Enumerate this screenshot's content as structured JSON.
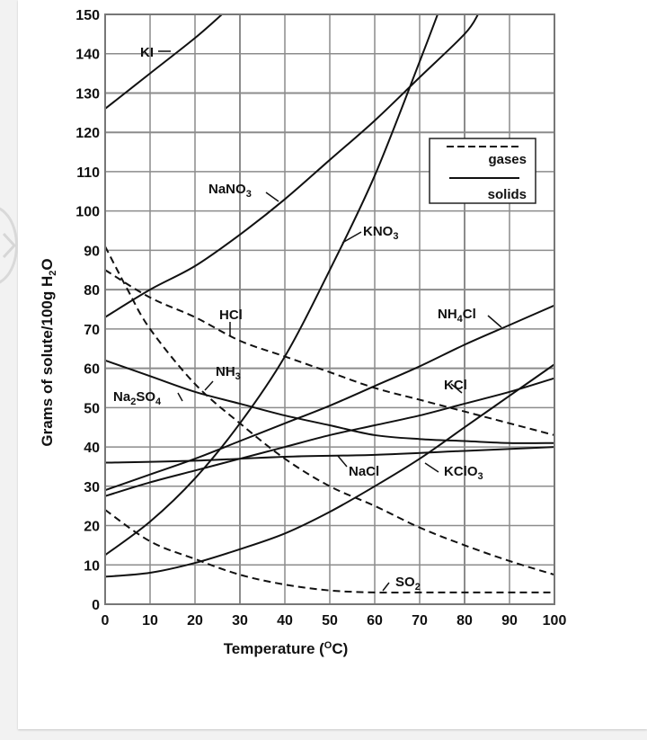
{
  "page": {
    "nav_icon": "chevron-left-icon"
  },
  "chart_data": {
    "type": "line",
    "title": "",
    "xlabel": "Temperature (°C)",
    "xlabel_parts": {
      "main": "Temperature (",
      "sup": "O",
      "unit": "C)"
    },
    "ylabel": "Grams of solute/100g H2O",
    "ylabel_parts": {
      "main": "Grams of solute/100g H",
      "sub": "2",
      "end": "O"
    },
    "xlim": [
      0,
      100
    ],
    "ylim": [
      0,
      150
    ],
    "x_ticks": [
      0,
      10,
      20,
      30,
      40,
      50,
      60,
      70,
      80,
      90,
      100
    ],
    "y_ticks": [
      0,
      10,
      20,
      30,
      40,
      50,
      60,
      70,
      80,
      90,
      100,
      110,
      120,
      130,
      140,
      150
    ],
    "grid": true,
    "legend": {
      "placement": "top-right",
      "entries": [
        {
          "label": "gases",
          "style": "dashed"
        },
        {
          "label": "solids",
          "style": "solid"
        }
      ]
    },
    "series": [
      {
        "name": "KI",
        "label_parts": [
          "KI",
          "",
          ""
        ],
        "style": "solid",
        "points": [
          [
            0,
            126
          ],
          [
            10,
            135
          ],
          [
            20,
            144
          ],
          [
            26,
            150
          ]
        ]
      },
      {
        "name": "NaNO3",
        "label_parts": [
          "NaNO",
          "3",
          ""
        ],
        "style": "solid",
        "points": [
          [
            0,
            73
          ],
          [
            10,
            80
          ],
          [
            20,
            86
          ],
          [
            30,
            94
          ],
          [
            40,
            103
          ],
          [
            50,
            113
          ],
          [
            60,
            123
          ],
          [
            70,
            134
          ],
          [
            80,
            145
          ],
          [
            83,
            150
          ]
        ]
      },
      {
        "name": "KNO3",
        "label_parts": [
          "KNO",
          "3",
          ""
        ],
        "style": "solid",
        "points": [
          [
            0,
            12.5
          ],
          [
            10,
            21
          ],
          [
            20,
            32
          ],
          [
            30,
            46
          ],
          [
            40,
            63
          ],
          [
            50,
            85
          ],
          [
            60,
            109
          ],
          [
            70,
            138
          ],
          [
            74,
            150
          ]
        ]
      },
      {
        "name": "HCl",
        "label_parts": [
          "HCl",
          "",
          ""
        ],
        "style": "dashed",
        "points": [
          [
            0,
            85
          ],
          [
            10,
            78
          ],
          [
            20,
            73
          ],
          [
            30,
            67
          ],
          [
            40,
            63
          ],
          [
            50,
            59
          ],
          [
            60,
            55
          ],
          [
            70,
            52
          ],
          [
            80,
            49
          ],
          [
            90,
            46
          ],
          [
            100,
            43
          ]
        ]
      },
      {
        "name": "NH3",
        "label_parts": [
          "NH",
          "3",
          ""
        ],
        "style": "dashed",
        "points": [
          [
            0,
            91
          ],
          [
            5,
            80
          ],
          [
            10,
            70
          ],
          [
            20,
            56
          ],
          [
            30,
            46
          ],
          [
            40,
            37
          ],
          [
            50,
            30
          ],
          [
            60,
            25
          ],
          [
            70,
            19.5
          ],
          [
            80,
            15
          ],
          [
            90,
            11
          ],
          [
            100,
            7.5
          ]
        ]
      },
      {
        "name": "Na2SO4",
        "label_parts": [
          "Na",
          "2",
          "SO4"
        ],
        "style": "solid",
        "points": [
          [
            0,
            62
          ],
          [
            10,
            58
          ],
          [
            20,
            54
          ],
          [
            30,
            51
          ],
          [
            40,
            48
          ],
          [
            50,
            45.5
          ],
          [
            60,
            43
          ],
          [
            70,
            42
          ],
          [
            80,
            41.5
          ],
          [
            90,
            41
          ],
          [
            100,
            41
          ]
        ]
      },
      {
        "name": "NH4Cl",
        "label_parts": [
          "NH",
          "4",
          "Cl"
        ],
        "style": "solid",
        "points": [
          [
            0,
            29
          ],
          [
            10,
            33
          ],
          [
            20,
            37
          ],
          [
            30,
            41.5
          ],
          [
            40,
            46
          ],
          [
            50,
            50.5
          ],
          [
            60,
            55.5
          ],
          [
            70,
            60.5
          ],
          [
            80,
            66
          ],
          [
            90,
            71
          ],
          [
            100,
            76
          ]
        ]
      },
      {
        "name": "KCl",
        "label_parts": [
          "KCl",
          "",
          ""
        ],
        "style": "solid",
        "points": [
          [
            0,
            27.5
          ],
          [
            10,
            31
          ],
          [
            20,
            34
          ],
          [
            30,
            37
          ],
          [
            40,
            40
          ],
          [
            50,
            43
          ],
          [
            60,
            45.5
          ],
          [
            70,
            48
          ],
          [
            80,
            51
          ],
          [
            90,
            54
          ],
          [
            100,
            57.5
          ]
        ]
      },
      {
        "name": "NaCl",
        "label_parts": [
          "NaCl",
          "",
          ""
        ],
        "style": "solid",
        "points": [
          [
            0,
            36
          ],
          [
            20,
            36.5
          ],
          [
            40,
            37.5
          ],
          [
            60,
            38
          ],
          [
            80,
            39
          ],
          [
            100,
            40
          ]
        ]
      },
      {
        "name": "KClO3",
        "label_parts": [
          "KClO",
          "3",
          ""
        ],
        "style": "solid",
        "points": [
          [
            0,
            7
          ],
          [
            10,
            8
          ],
          [
            20,
            10.5
          ],
          [
            30,
            14
          ],
          [
            40,
            18
          ],
          [
            50,
            23.5
          ],
          [
            60,
            30
          ],
          [
            70,
            37
          ],
          [
            80,
            45
          ],
          [
            90,
            53
          ],
          [
            100,
            61
          ]
        ]
      },
      {
        "name": "SO2",
        "label_parts": [
          "SO",
          "2",
          ""
        ],
        "style": "dashed",
        "points": [
          [
            0,
            24
          ],
          [
            10,
            16
          ],
          [
            20,
            11.5
          ],
          [
            30,
            7.5
          ],
          [
            40,
            5
          ],
          [
            50,
            3.5
          ],
          [
            60,
            3
          ],
          [
            70,
            3
          ],
          [
            80,
            3
          ],
          [
            90,
            3
          ],
          [
            100,
            3
          ]
        ]
      }
    ]
  }
}
